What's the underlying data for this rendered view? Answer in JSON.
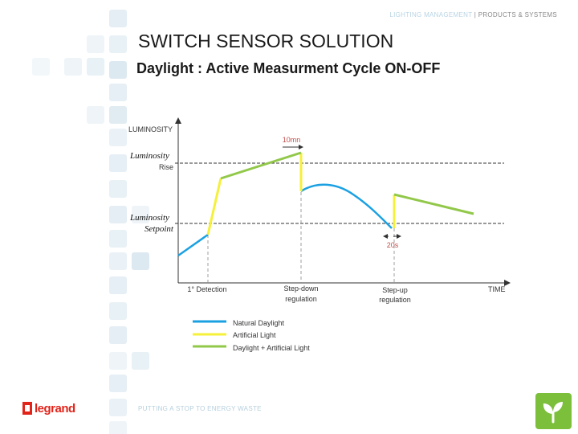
{
  "header": {
    "tagline_highlight": "LIGHTING MANAGEMENT",
    "tagline_rest": " | PRODUCTS & SYSTEMS"
  },
  "title": "SWITCH SENSOR SOLUTION",
  "subtitle": "Daylight : Active Measurment Cycle ON-OFF",
  "diagram": {
    "y_axis_label": "LUMINOSITY",
    "x_axis_label": "TIME",
    "rise_label_line1": "Luminosity",
    "rise_label_line2": "Rise",
    "setpoint_label_line1": "Luminosity",
    "setpoint_label_line2": "Setpoint",
    "duration_10mn": "10mn",
    "duration_20s": "20s",
    "events": {
      "detection": "1° Detection",
      "step_down_line1": "Step-down",
      "step_down_line2": "regulation",
      "step_up_line1": "Step-up",
      "step_up_line2": "regulation"
    },
    "legend": [
      {
        "label": "Natural Daylight",
        "color": "#1ba1e2"
      },
      {
        "label": "Artificial Light",
        "color": "#f5f03a"
      },
      {
        "label": "Daylight + Artificial Light",
        "color": "#92c84a"
      }
    ],
    "colors": {
      "daylight": "#1ba1e2",
      "artificial": "#f5f03a",
      "combined": "#92c84a",
      "annotation": "#c0504d",
      "threshold": "#333333"
    }
  },
  "footer": {
    "slogan": "PUTTING A STOP TO ENERGY WASTE",
    "brand": "legrand"
  },
  "icons": {
    "brand_mark": "legrand-logo-icon",
    "leaf_badge": "leaf-icon"
  }
}
